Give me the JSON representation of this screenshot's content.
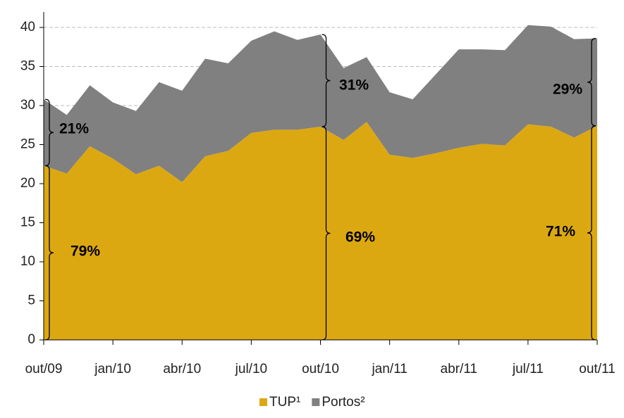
{
  "chart_data": {
    "type": "stacked-area",
    "categories": [
      "out/09",
      null,
      null,
      "jan/10",
      null,
      null,
      "abr/10",
      null,
      null,
      "jul/10",
      null,
      null,
      "out/10",
      null,
      null,
      "jan/11",
      null,
      null,
      "abr/11",
      null,
      null,
      "jul/11",
      null,
      null,
      "out/11"
    ],
    "series": [
      {
        "name": "TUP¹",
        "color": "#dca812",
        "values": [
          22.3,
          21.3,
          24.8,
          23.2,
          21.2,
          22.3,
          20.2,
          23.5,
          24.2,
          26.5,
          26.9,
          26.9,
          27.3,
          25.6,
          27.9,
          23.7,
          23.3,
          23.9,
          24.6,
          25.1,
          24.9,
          27.6,
          27.3,
          25.9,
          27.4
        ]
      },
      {
        "name": "Portos²",
        "color": "#808080",
        "values": [
          8.5,
          7.5,
          7.8,
          7.2,
          8.1,
          10.7,
          11.7,
          12.5,
          11.2,
          11.8,
          12.6,
          11.5,
          11.8,
          9.2,
          8.3,
          8.0,
          7.5,
          10.1,
          12.6,
          12.1,
          12.2,
          12.7,
          12.8,
          12.6,
          11.2
        ]
      }
    ],
    "annotations": [
      "79%",
      "21%",
      "69%",
      "31%",
      "71%",
      "29%"
    ],
    "ylim": [
      0,
      40
    ],
    "yticks": [
      0,
      5,
      10,
      15,
      20,
      25,
      30,
      35,
      40
    ],
    "grid": true,
    "legend": "bottom"
  }
}
